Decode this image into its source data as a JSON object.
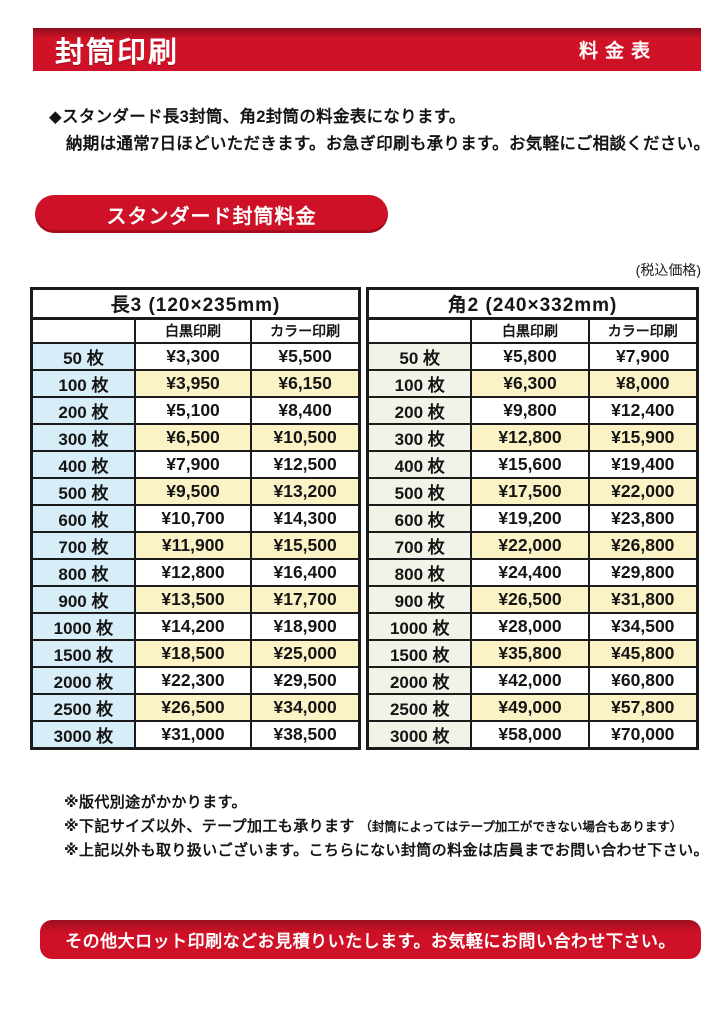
{
  "header": {
    "title": "封筒印刷",
    "subtitle": "料金表"
  },
  "intro": {
    "line1": "◆スタンダード長3封筒、角2封筒の料金表になります。",
    "line2": "納期は通常7日ほどいただきます。お急ぎ印刷も承ります。お気軽にご相談ください。"
  },
  "section": {
    "label": "スタンダード封筒料金"
  },
  "tax_note": "(税込価格)",
  "columns": {
    "bw": "白黒印刷",
    "color": "カラー印刷"
  },
  "tables": [
    {
      "title": "長3 (120×235mm)",
      "rows": [
        [
          "50 枚",
          "¥3,300",
          "¥5,500"
        ],
        [
          "100 枚",
          "¥3,950",
          "¥6,150"
        ],
        [
          "200 枚",
          "¥5,100",
          "¥8,400"
        ],
        [
          "300 枚",
          "¥6,500",
          "¥10,500"
        ],
        [
          "400 枚",
          "¥7,900",
          "¥12,500"
        ],
        [
          "500 枚",
          "¥9,500",
          "¥13,200"
        ],
        [
          "600 枚",
          "¥10,700",
          "¥14,300"
        ],
        [
          "700 枚",
          "¥11,900",
          "¥15,500"
        ],
        [
          "800 枚",
          "¥12,800",
          "¥16,400"
        ],
        [
          "900 枚",
          "¥13,500",
          "¥17,700"
        ],
        [
          "1000 枚",
          "¥14,200",
          "¥18,900"
        ],
        [
          "1500 枚",
          "¥18,500",
          "¥25,000"
        ],
        [
          "2000 枚",
          "¥22,300",
          "¥29,500"
        ],
        [
          "2500 枚",
          "¥26,500",
          "¥34,000"
        ],
        [
          "3000 枚",
          "¥31,000",
          "¥38,500"
        ]
      ]
    },
    {
      "title": "角2 (240×332mm)",
      "rows": [
        [
          "50 枚",
          "¥5,800",
          "¥7,900"
        ],
        [
          "100 枚",
          "¥6,300",
          "¥8,000"
        ],
        [
          "200 枚",
          "¥9,800",
          "¥12,400"
        ],
        [
          "300 枚",
          "¥12,800",
          "¥15,900"
        ],
        [
          "400 枚",
          "¥15,600",
          "¥19,400"
        ],
        [
          "500 枚",
          "¥17,500",
          "¥22,000"
        ],
        [
          "600 枚",
          "¥19,200",
          "¥23,800"
        ],
        [
          "700 枚",
          "¥22,000",
          "¥26,800"
        ],
        [
          "800 枚",
          "¥24,400",
          "¥29,800"
        ],
        [
          "900 枚",
          "¥26,500",
          "¥31,800"
        ],
        [
          "1000 枚",
          "¥28,000",
          "¥34,500"
        ],
        [
          "1500 枚",
          "¥35,800",
          "¥45,800"
        ],
        [
          "2000 枚",
          "¥42,000",
          "¥60,800"
        ],
        [
          "2500 枚",
          "¥49,000",
          "¥57,800"
        ],
        [
          "3000 枚",
          "¥58,000",
          "¥70,000"
        ]
      ]
    }
  ],
  "footnotes": [
    {
      "main": "※版代別途がかかります。",
      "note": ""
    },
    {
      "main": "※下記サイズ以外、テープ加工も承ります",
      "note": "（封筒によってはテープ加工ができない場合もあります）"
    },
    {
      "main": "※上記以外も取り扱いございます。こちらにない封筒の料金は店員までお問い合わせ下さい。",
      "note": ""
    }
  ],
  "bottom_banner": {
    "label": "その他大ロット印刷などお見積りいたします。お気軽にお問い合わせ下さい。"
  },
  "colors": {
    "accent_red": "#ce1126",
    "row_yellow": "#fbf2c6",
    "qty_blue": "#d7edf8",
    "qty_green": "#eff3e8",
    "border_black": "#1b1b1b"
  }
}
